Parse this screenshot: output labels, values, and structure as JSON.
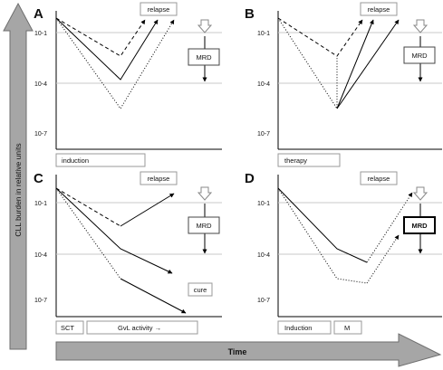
{
  "y_axis_label": "CLL burden in relative units",
  "x_axis_label": "Time",
  "tick_labels": [
    "10-1",
    "10-4",
    "10-7"
  ],
  "panels": [
    {
      "letter": "A",
      "labels": {
        "relapse": "relapse",
        "mrd": "MRD"
      },
      "phases": [
        "induction"
      ],
      "cure_label": ""
    },
    {
      "letter": "B",
      "labels": {
        "relapse": "relapse",
        "mrd": "MRD"
      },
      "phases": [
        "therapy"
      ],
      "cure_label": ""
    },
    {
      "letter": "C",
      "labels": {
        "relapse": "relapse",
        "mrd": "MRD"
      },
      "phases": [
        "SCT",
        "GvL activity →"
      ],
      "cure_label": "cure"
    },
    {
      "letter": "D",
      "labels": {
        "relapse": "relapse",
        "mrd": "MRD"
      },
      "phases": [
        "Induction",
        "M"
      ],
      "cure_label": ""
    }
  ],
  "colors": {
    "arrow_fill": "#a6a6a6",
    "arrow_stroke": "#6e6e6e",
    "gridline": "#c8c8c8",
    "line": "#000000"
  }
}
